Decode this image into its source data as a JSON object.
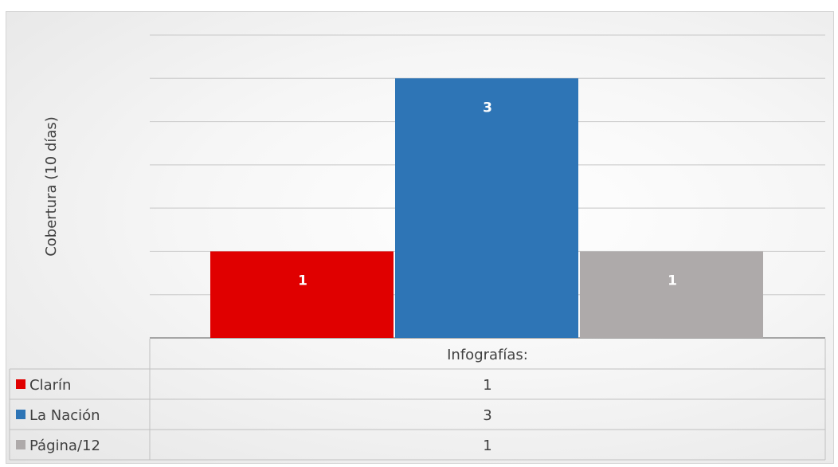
{
  "chart_data": {
    "type": "bar",
    "ylabel": "Cobertura (10 días)",
    "category_header": "Infografías:",
    "ylim": [
      0,
      3.5
    ],
    "tick_step": 0.5,
    "gridlines": true,
    "legend": "table-bottom",
    "series": [
      {
        "name": "Clarín",
        "color": "#e00000",
        "value": 1,
        "label": "1",
        "table_value": "1"
      },
      {
        "name": "La Nación",
        "color": "#2e75b6",
        "value": 3,
        "label": "3",
        "table_value": "3"
      },
      {
        "name": "Página/12",
        "color": "#aeaaaa",
        "value": 1,
        "label": "1",
        "table_value": "1"
      }
    ]
  }
}
